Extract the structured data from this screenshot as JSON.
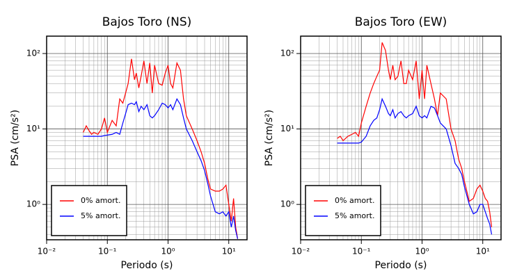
{
  "chart_data": [
    {
      "type": "line",
      "title": "Bajos Toro (NS)",
      "x_label": "Periodo (s)",
      "y_label": "PSA (cm/s²)",
      "xscale": "log",
      "yscale": "log",
      "grid": true,
      "legend": "lower left",
      "xlim": [
        0.01,
        20
      ],
      "ylim": [
        0.34,
        170
      ],
      "xticks": [
        {
          "value": 0.01,
          "label": "10⁻²"
        },
        {
          "value": 0.1,
          "label": "10⁻¹"
        },
        {
          "value": 1,
          "label": "10⁰"
        },
        {
          "value": 10,
          "label": "10¹"
        }
      ],
      "yticks": [
        {
          "value": 1,
          "label": "10⁰"
        },
        {
          "value": 10,
          "label": "10¹"
        },
        {
          "value": 100,
          "label": "10²"
        }
      ],
      "x": [
        0.04,
        0.045,
        0.05,
        0.055,
        0.06,
        0.07,
        0.08,
        0.09,
        0.1,
        0.12,
        0.14,
        0.16,
        0.18,
        0.2,
        0.22,
        0.25,
        0.28,
        0.3,
        0.33,
        0.36,
        0.4,
        0.45,
        0.5,
        0.55,
        0.6,
        0.7,
        0.8,
        0.9,
        1.0,
        1.1,
        1.2,
        1.4,
        1.6,
        1.8,
        2,
        2.5,
        3,
        3.5,
        4,
        4.5,
        5,
        6,
        7,
        8,
        9,
        10,
        11,
        12,
        13,
        14
      ],
      "series": [
        {
          "name": "0% amort.",
          "color": "#ff0000",
          "values": [
            9,
            11,
            9.5,
            8.5,
            9,
            8.5,
            10,
            14,
            9,
            13,
            11,
            25,
            22,
            30,
            40,
            85,
            45,
            55,
            35,
            50,
            80,
            40,
            75,
            30,
            70,
            40,
            38,
            55,
            70,
            40,
            35,
            75,
            60,
            25,
            15,
            10,
            7,
            5,
            3.5,
            2.2,
            1.6,
            1.5,
            1.5,
            1.6,
            1.8,
            1.0,
            0.6,
            1.2,
            0.5,
            0.35
          ]
        },
        {
          "name": "5% amort.",
          "color": "#0000ff",
          "values": [
            8,
            8,
            8,
            8,
            8,
            8,
            8,
            8.2,
            8.3,
            8.5,
            9,
            8.5,
            12,
            16,
            21,
            22,
            21,
            23,
            17,
            20,
            18,
            21,
            15,
            14,
            15,
            18,
            22,
            21,
            19,
            21,
            18,
            25,
            21,
            14,
            10,
            7,
            5,
            3.8,
            2.8,
            1.9,
            1.3,
            0.8,
            0.75,
            0.8,
            0.7,
            0.8,
            0.5,
            0.7,
            0.45,
            0.35
          ]
        }
      ]
    },
    {
      "type": "line",
      "title": "Bajos Toro (EW)",
      "x_label": "Periodo (s)",
      "y_label": "PSA (cm/s²)",
      "xscale": "log",
      "yscale": "log",
      "grid": true,
      "legend": "lower left",
      "xlim": [
        0.01,
        20
      ],
      "ylim": [
        0.34,
        170
      ],
      "xticks": [
        {
          "value": 0.01,
          "label": "10⁻²"
        },
        {
          "value": 0.1,
          "label": "10⁻¹"
        },
        {
          "value": 1,
          "label": "10⁰"
        },
        {
          "value": 10,
          "label": "10¹"
        }
      ],
      "yticks": [
        {
          "value": 1,
          "label": "10⁰"
        },
        {
          "value": 10,
          "label": "10¹"
        },
        {
          "value": 100,
          "label": "10²"
        }
      ],
      "x": [
        0.04,
        0.045,
        0.05,
        0.055,
        0.06,
        0.07,
        0.08,
        0.09,
        0.1,
        0.12,
        0.14,
        0.16,
        0.18,
        0.2,
        0.22,
        0.25,
        0.28,
        0.3,
        0.33,
        0.36,
        0.4,
        0.45,
        0.5,
        0.55,
        0.6,
        0.7,
        0.8,
        0.9,
        1.0,
        1.1,
        1.2,
        1.4,
        1.6,
        1.8,
        2,
        2.5,
        3,
        3.5,
        4,
        4.5,
        5,
        6,
        7,
        8,
        9,
        10,
        11,
        12,
        13,
        14
      ],
      "series": [
        {
          "name": "0% amort.",
          "color": "#ff0000",
          "values": [
            7.5,
            8,
            7,
            7.5,
            8,
            8.5,
            9,
            8,
            12,
            20,
            30,
            40,
            50,
            60,
            140,
            110,
            60,
            45,
            70,
            45,
            50,
            80,
            40,
            40,
            60,
            45,
            80,
            25,
            60,
            25,
            70,
            40,
            25,
            15,
            30,
            25,
            10,
            7,
            4,
            3,
            2,
            1.1,
            1.2,
            1.6,
            1.8,
            1.5,
            1.2,
            1.1,
            0.8,
            0.5
          ]
        },
        {
          "name": "5% amort.",
          "color": "#0000ff",
          "values": [
            6.5,
            6.5,
            6.5,
            6.5,
            6.5,
            6.5,
            6.5,
            6.5,
            6.7,
            8,
            11,
            13,
            14,
            18,
            25,
            20,
            16,
            15,
            18,
            14,
            16,
            17,
            15,
            14,
            15,
            16,
            20,
            15,
            14,
            15,
            14,
            20,
            19,
            15,
            12,
            10,
            6,
            3.5,
            3,
            2.5,
            1.7,
            1.0,
            0.75,
            0.8,
            1.0,
            1.0,
            0.8,
            0.65,
            0.55,
            0.4
          ]
        }
      ]
    }
  ]
}
